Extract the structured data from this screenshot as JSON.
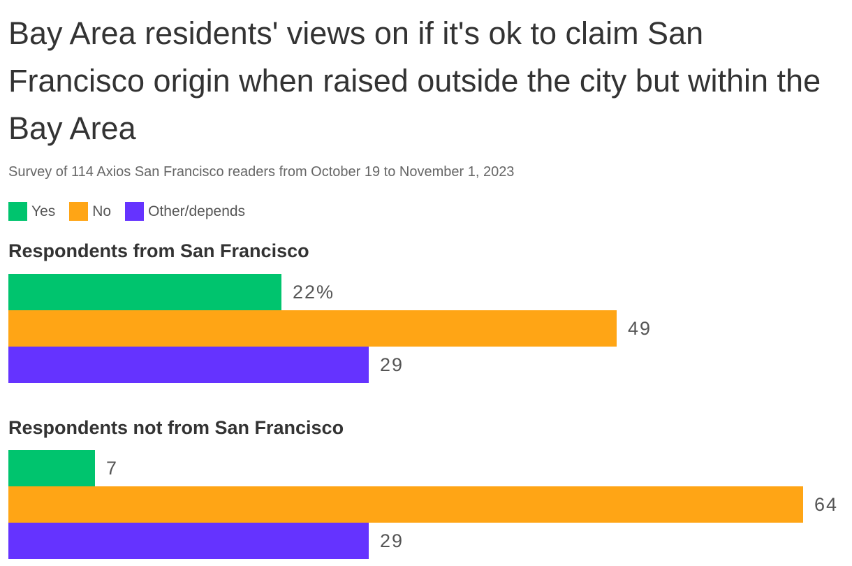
{
  "chart_data": {
    "type": "bar",
    "title": "Bay Area residents' views on if it's ok to claim San Francisco origin when raised outside the city but within the Bay Area",
    "subtitle": "Survey of 114 Axios San Francisco readers from October 19 to November 1, 2023",
    "orientation": "horizontal",
    "legend": {
      "placement": "top-left",
      "entries": [
        {
          "name": "Yes",
          "color": "#00c46e"
        },
        {
          "name": "No",
          "color": "#ffa515"
        },
        {
          "name": "Other/depends",
          "color": "#6533ff"
        }
      ]
    },
    "xlim": [
      0,
      64
    ],
    "grid": false,
    "groups": [
      {
        "title": "Respondents from San Francisco",
        "values": [
          22,
          49,
          29
        ],
        "labels": [
          "22%",
          "49",
          "29"
        ]
      },
      {
        "title": "Respondents not from San Francisco",
        "values": [
          7,
          64,
          29
        ],
        "labels": [
          "7",
          "64",
          "29"
        ]
      }
    ]
  }
}
